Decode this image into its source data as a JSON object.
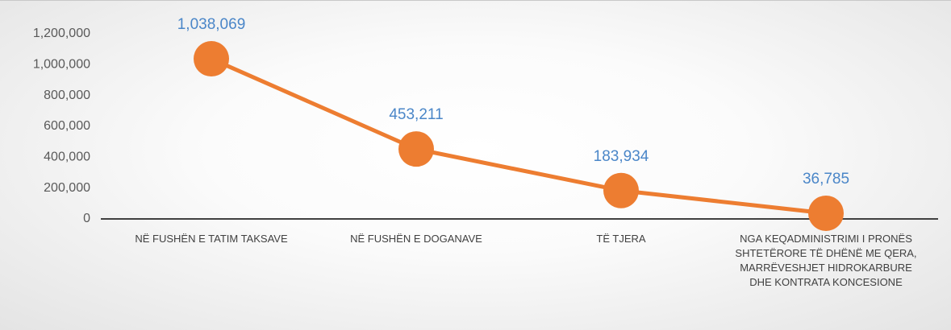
{
  "chart_data": {
    "type": "line",
    "categories": [
      "NË FUSHËN E TATIM TAKSAVE",
      "NË FUSHËN E DOGANAVE",
      "TË TJERA",
      "NGA KEQADMINISTRIMI I PRONËS SHTETËRORE TË DHËNË ME QERA, MARRËVESHJET HIDROKARBURE DHE KONTRATA KONCESIONE"
    ],
    "values": [
      1038069,
      453211,
      183934,
      36785
    ],
    "value_labels": [
      "1,038,069",
      "453,211",
      "183,934",
      "36,785"
    ],
    "color": "#ed7d31",
    "ylim": [
      0,
      1200000
    ],
    "yticks": [
      0,
      {
        "value": 200000,
        "label": "200,000"
      },
      {
        "value": 400000,
        "label": "400,000"
      },
      {
        "value": 600000,
        "label": "600,000"
      },
      {
        "value": 800000,
        "label": "800,000"
      },
      {
        "value": 1000000,
        "label": "1,000,000"
      },
      {
        "value": 1200000,
        "label": "1,200,000"
      }
    ]
  }
}
